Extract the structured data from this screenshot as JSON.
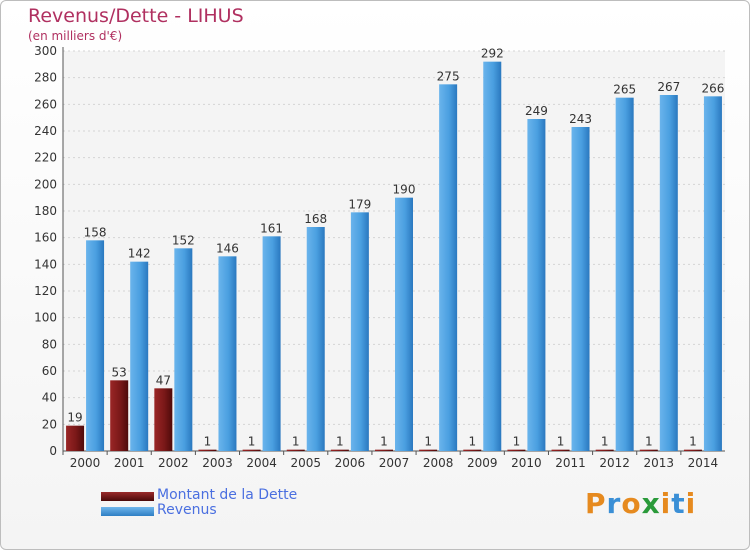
{
  "header": {
    "title": "Revenus/Dette - LIHUS",
    "subtitle": "(en milliers d'€)"
  },
  "chart_data": {
    "type": "bar",
    "categories": [
      "2000",
      "2001",
      "2002",
      "2003",
      "2004",
      "2005",
      "2006",
      "2007",
      "2008",
      "2009",
      "2010",
      "2011",
      "2012",
      "2013",
      "2014"
    ],
    "series": [
      {
        "name": "Montant de la Dette",
        "values": [
          19,
          53,
          47,
          1,
          1,
          1,
          1,
          1,
          1,
          1,
          1,
          1,
          1,
          1,
          1
        ],
        "color": "#6e1414"
      },
      {
        "name": "Revenus",
        "values": [
          158,
          142,
          152,
          146,
          161,
          168,
          179,
          190,
          275,
          292,
          249,
          243,
          265,
          267,
          266
        ],
        "color": "#3d8fd6"
      }
    ],
    "ylim": [
      0,
      300
    ],
    "yticks": [
      0,
      20,
      40,
      60,
      80,
      100,
      120,
      140,
      160,
      180,
      200,
      220,
      240,
      260,
      280,
      300
    ],
    "grid": true,
    "legend": "bottom-left"
  },
  "legend": {
    "items": [
      {
        "label": "Montant de la Dette",
        "color": "#6e1414"
      },
      {
        "label": "Revenus",
        "color": "#3d8fd6"
      }
    ]
  },
  "logo": {
    "text": "Proxiti",
    "letters": [
      "P",
      "r",
      "o",
      "x",
      "i",
      "t",
      "i"
    ],
    "colors": [
      "#e68a1f",
      "#3a8fd6",
      "#e68a1f",
      "#2a9a3a",
      "#e68a1f",
      "#3a8fd6",
      "#e68a1f"
    ]
  }
}
